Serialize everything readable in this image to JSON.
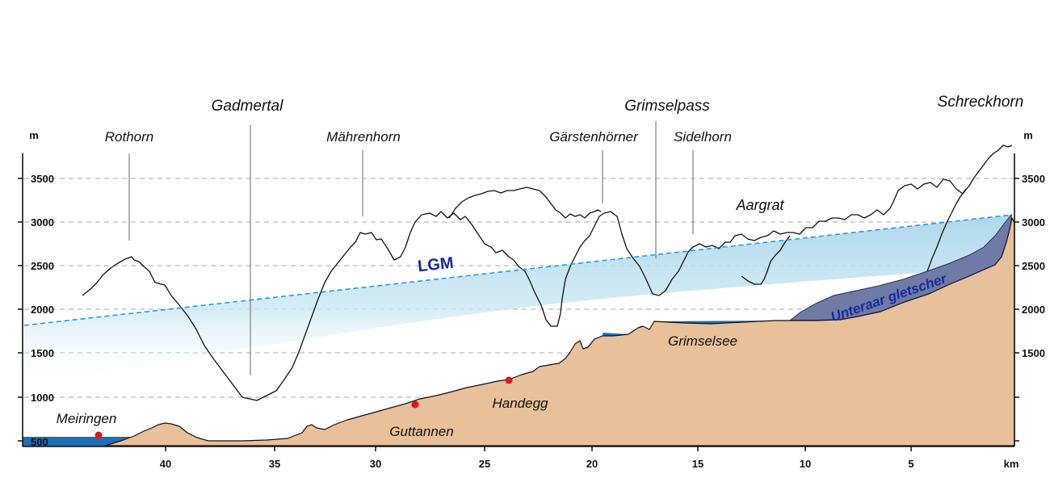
{
  "axes": {
    "y_unit_left": "m",
    "y_unit_right": "m",
    "x_unit": "km",
    "y_ticks_left": [
      "3500",
      "3000",
      "2500",
      "2000",
      "1500",
      "1000",
      "500"
    ],
    "y_ticks_right": [
      "3500",
      "3000",
      "2500",
      "2000",
      "1500"
    ],
    "x_ticks": [
      "40",
      "35",
      "30",
      "25",
      "20",
      "15",
      "10",
      "5"
    ]
  },
  "peaks": {
    "rothorn": "Rothorn",
    "gadmertal": "Gadmertal",
    "maehrenhorn": "Mährenhorn",
    "gaerstenhoerner": "Gärstenhörner",
    "grimselpass": "Grimselpass",
    "sidelhorn": "Sidelhorn",
    "schreckhorn": "Schreckhorn",
    "aargrat": "Aargrat"
  },
  "features": {
    "lgm": "LGM",
    "unteraar": "Unteraar gletscher",
    "grimselsee": "Grimselsee"
  },
  "places": {
    "meiringen": "Meiringen",
    "guttannen": "Guttannen",
    "handegg": "Handegg"
  },
  "colors": {
    "terrain": "#e8c09a",
    "water": "#1f6fb2",
    "glacier": "#6f7aa6",
    "lgm_ice": "#bfe0ee",
    "lgm_line": "#2a9ad6",
    "label_blue": "#1a2a9a",
    "marker": "#e0141b",
    "grid": "#999999"
  }
}
